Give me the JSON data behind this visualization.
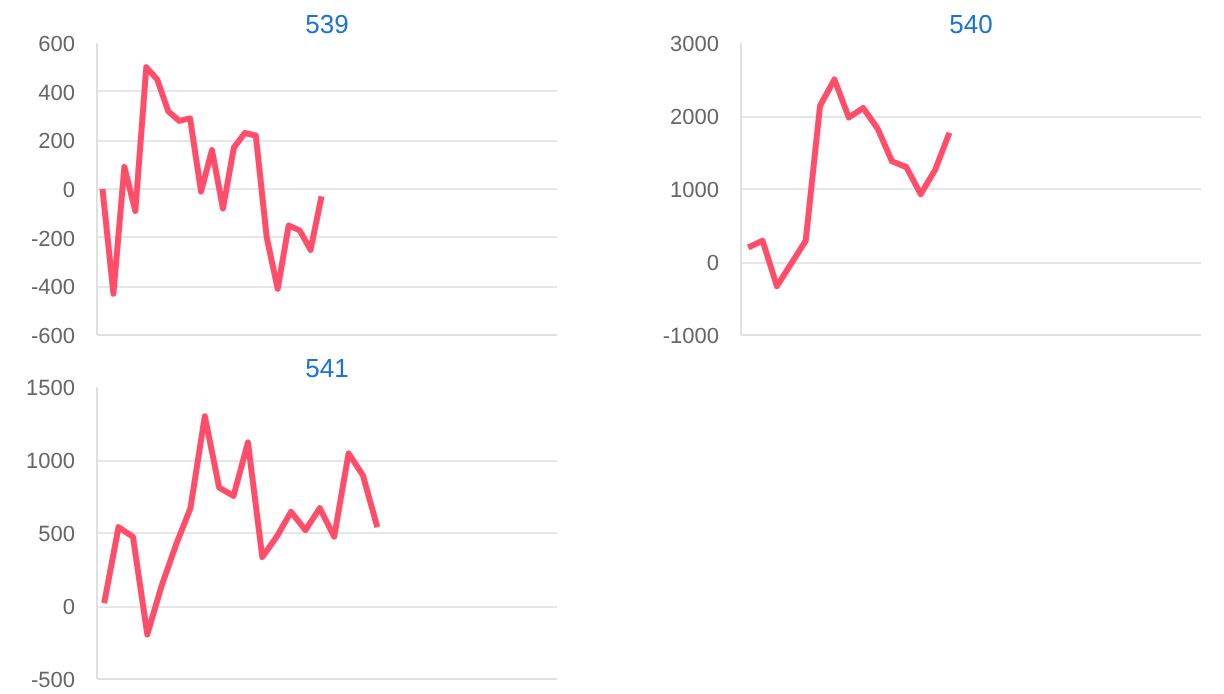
{
  "chart_data": [
    {
      "type": "line",
      "title": "539",
      "categories": [
        null,
        null,
        null,
        null,
        null,
        null,
        null,
        null,
        null,
        null,
        null,
        null,
        null,
        null,
        null,
        null,
        null,
        null,
        null,
        null,
        null,
        null,
        null,
        null,
        null,
        null,
        null,
        null,
        null,
        null,
        null,
        null,
        null,
        null,
        null,
        null,
        null,
        null,
        null,
        null,
        null,
        null
      ],
      "ylim": [
        -600,
        600
      ],
      "yticks": [
        -600,
        -400,
        -200,
        0,
        200,
        400,
        600
      ],
      "tick_labels": "y",
      "grid": "y",
      "series": [
        {
          "color": "#ff4d6a",
          "values": [
            0,
            -430,
            90,
            -90,
            500,
            450,
            320,
            280,
            290,
            -10,
            160,
            -80,
            170,
            230,
            220,
            -200,
            -410,
            -150,
            -170,
            -250,
            -30,
            null,
            null,
            null,
            null,
            null,
            null,
            null,
            null,
            null,
            null,
            null,
            null,
            null,
            null,
            null,
            null,
            null,
            null,
            null,
            null,
            null
          ]
        }
      ]
    },
    {
      "type": "line",
      "title": "540",
      "categories": [
        null,
        null,
        null,
        null,
        null,
        null,
        null,
        null,
        null,
        null,
        null,
        null,
        null,
        null,
        null,
        null,
        null,
        null,
        null,
        null,
        null,
        null,
        null,
        null,
        null,
        null,
        null,
        null,
        null,
        null,
        null,
        null
      ],
      "ylim": [
        -1000,
        3000
      ],
      "yticks": [
        -1000,
        0,
        1000,
        2000,
        3000
      ],
      "tick_labels": "y",
      "grid": "y",
      "series": [
        {
          "color": "#ff4d6a",
          "values": [
            200,
            290,
            -330,
            -20,
            290,
            2140,
            2500,
            1980,
            2110,
            1830,
            1380,
            1300,
            930,
            1260,
            1770,
            null,
            null,
            null,
            null,
            null,
            null,
            null,
            null,
            null,
            null,
            null,
            null,
            null,
            null,
            null,
            null,
            null
          ]
        }
      ]
    },
    {
      "type": "line",
      "title": "541",
      "categories": [
        null,
        null,
        null,
        null,
        null,
        null,
        null,
        null,
        null,
        null,
        null,
        null,
        null,
        null,
        null,
        null,
        null,
        null,
        null,
        null,
        null,
        null,
        null,
        null,
        null,
        null,
        null,
        null,
        null,
        null,
        null,
        null
      ],
      "ylim": [
        -500,
        1500
      ],
      "yticks": [
        -500,
        0,
        500,
        1000,
        1500
      ],
      "tick_labels": "y",
      "grid": "y",
      "series": [
        {
          "color": "#ff4d6a",
          "values": [
            20,
            540,
            475,
            -195,
            140,
            420,
            670,
            1300,
            810,
            755,
            1120,
            335,
            475,
            645,
            520,
            670,
            475,
            1045,
            895,
            540,
            null,
            null,
            null,
            null,
            null,
            null,
            null,
            null,
            null,
            null,
            null,
            null
          ]
        }
      ]
    }
  ]
}
